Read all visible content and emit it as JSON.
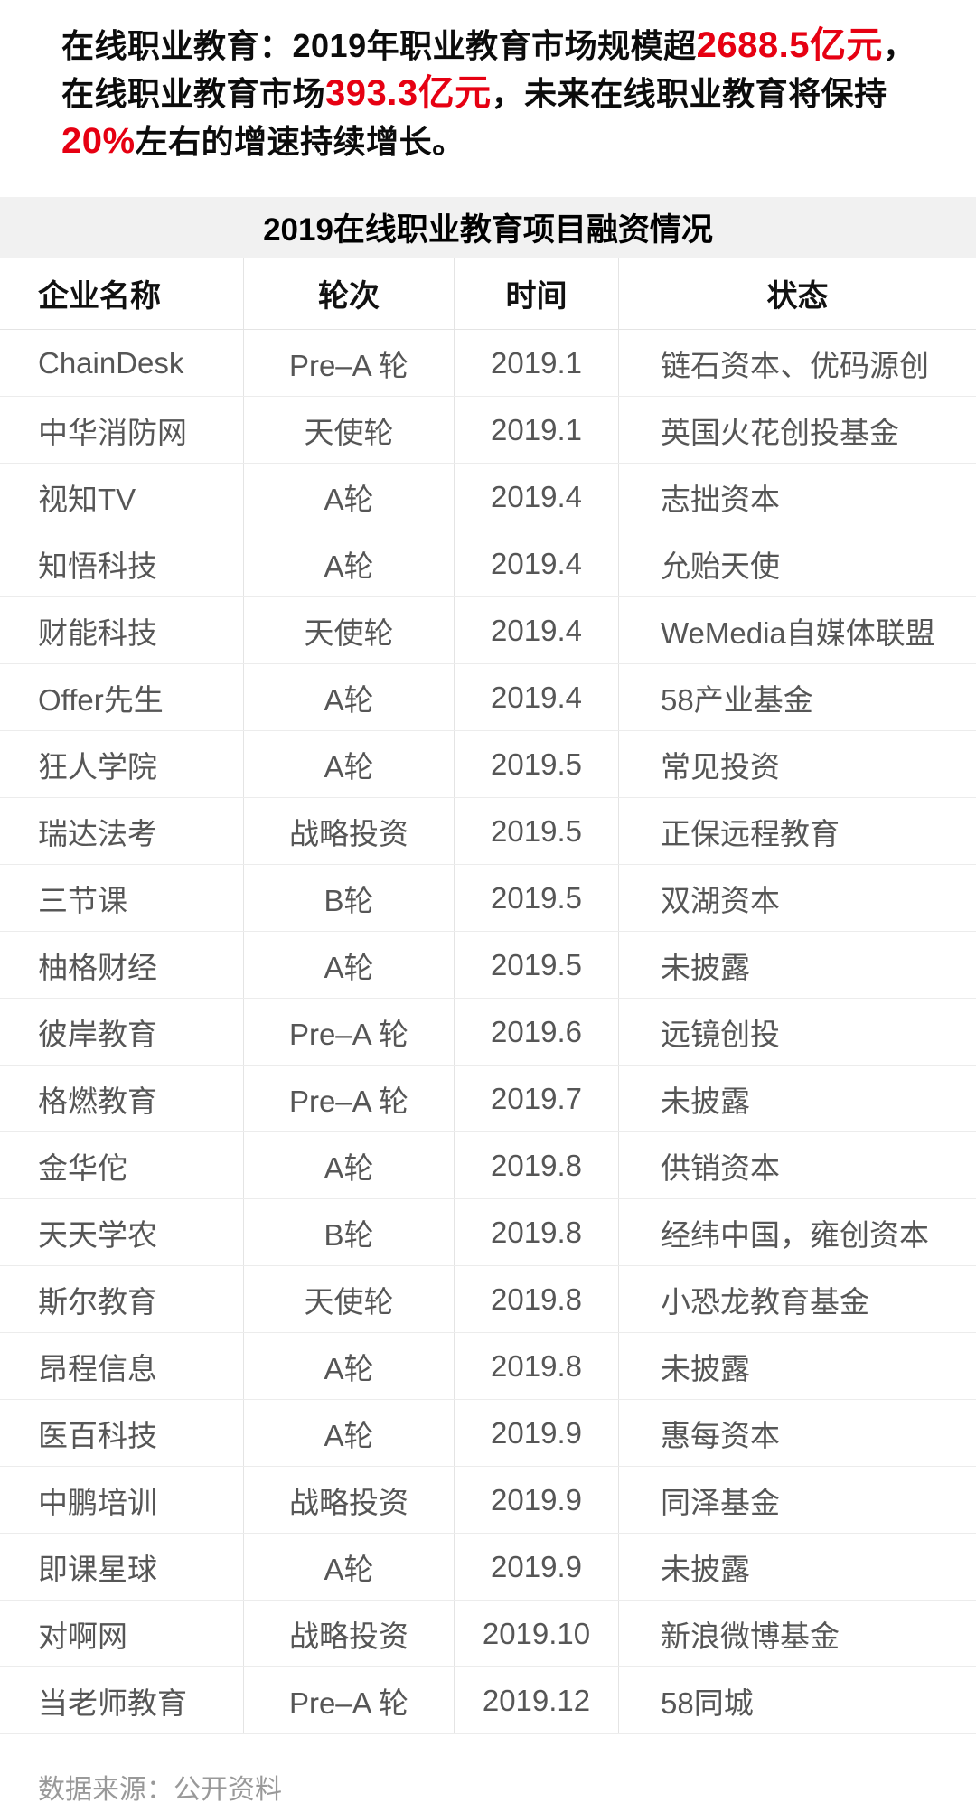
{
  "intro": {
    "line1": {
      "black1": "在线职业教育：2019年职业教育市场规模超",
      "red": "2688.5亿元",
      "black2": "，"
    },
    "line2": {
      "black1": "在线职业教育市场",
      "red": "393.3亿元",
      "black2": "，未来在线职业教育将保持"
    },
    "line3": {
      "red": "20%",
      "black1": "左右的增速持续增长。"
    }
  },
  "table": {
    "title": "2019在线职业教育项目融资情况",
    "headers": [
      "企业名称",
      "轮次",
      "时间",
      "状态"
    ],
    "rows": [
      {
        "company": "ChainDesk",
        "round": "Pre–A 轮",
        "time": "2019.1",
        "status": "链石资本、优码源创"
      },
      {
        "company": "中华消防网",
        "round": "天使轮",
        "time": "2019.1",
        "status": "英国火花创投基金"
      },
      {
        "company": "视知TV",
        "round": "A轮",
        "time": "2019.4",
        "status": "志拙资本"
      },
      {
        "company": "知悟科技",
        "round": "A轮",
        "time": "2019.4",
        "status": "允贻天使"
      },
      {
        "company": "财能科技",
        "round": "天使轮",
        "time": "2019.4",
        "status": "WeMedia自媒体联盟"
      },
      {
        "company": "Offer先生",
        "round": "A轮",
        "time": "2019.4",
        "status": "58产业基金"
      },
      {
        "company": "狂人学院",
        "round": "A轮",
        "time": "2019.5",
        "status": "常见投资"
      },
      {
        "company": "瑞达法考",
        "round": "战略投资",
        "time": "2019.5",
        "status": "正保远程教育"
      },
      {
        "company": "三节课",
        "round": "B轮",
        "time": "2019.5",
        "status": "双湖资本"
      },
      {
        "company": "柚格财经",
        "round": "A轮",
        "time": "2019.5",
        "status": "未披露"
      },
      {
        "company": "彼岸教育",
        "round": "Pre–A 轮",
        "time": "2019.6",
        "status": "远镜创投"
      },
      {
        "company": "格燃教育",
        "round": "Pre–A 轮",
        "time": "2019.7",
        "status": "未披露"
      },
      {
        "company": "金华佗",
        "round": "A轮",
        "time": "2019.8",
        "status": "供销资本"
      },
      {
        "company": "天天学农",
        "round": "B轮",
        "time": "2019.8",
        "status": "经纬中国，雍创资本"
      },
      {
        "company": "斯尔教育",
        "round": "天使轮",
        "time": "2019.8",
        "status": "小恐龙教育基金"
      },
      {
        "company": "昂程信息",
        "round": "A轮",
        "time": "2019.8",
        "status": "未披露"
      },
      {
        "company": "医百科技",
        "round": "A轮",
        "time": "2019.9",
        "status": "惠每资本"
      },
      {
        "company": "中鹏培训",
        "round": "战略投资",
        "time": "2019.9",
        "status": "同泽基金"
      },
      {
        "company": "即课星球",
        "round": "A轮",
        "time": "2019.9",
        "status": "未披露"
      },
      {
        "company": "对啊网",
        "round": "战略投资",
        "time": "2019.10",
        "status": "新浪微博基金"
      },
      {
        "company": "当老师教育",
        "round": "Pre–A 轮",
        "time": "2019.12",
        "status": "58同城"
      }
    ]
  },
  "footer": {
    "source": "数据来源：公开资料"
  },
  "colors": {
    "highlight_red": "#e60012",
    "title_band_gray": "#f1f1f1",
    "body_text_gray": "#565656"
  }
}
